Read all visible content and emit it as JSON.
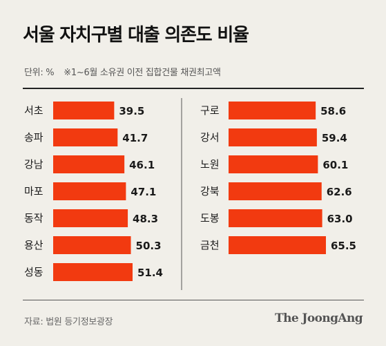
{
  "header": {
    "title": "서울 자치구별 대출 의존도 비율",
    "unit": "단위: %",
    "note": "※1~6월 소유권 이전 집합건물 채권최고액"
  },
  "footer": {
    "source": "자료: 법원 등기정보광장",
    "brand": "The JoongAng"
  },
  "colors": {
    "bar": "#f23a10",
    "background": "#f1efe9"
  },
  "chart_data": {
    "type": "bar",
    "orientation": "horizontal",
    "title": "서울 자치구별 대출 의존도 비율",
    "unit": "%",
    "xlim": [
      0,
      70
    ],
    "groups": [
      {
        "categories": [
          "서초",
          "송파",
          "강남",
          "마포",
          "동작",
          "용산",
          "성동"
        ],
        "values": [
          39.5,
          41.7,
          46.1,
          47.1,
          48.3,
          50.3,
          51.4
        ],
        "value_labels": [
          "39.5",
          "41.7",
          "46.1",
          "47.1",
          "48.3",
          "50.3",
          "51.4"
        ]
      },
      {
        "categories": [
          "구로",
          "강서",
          "노원",
          "강북",
          "도봉",
          "금천"
        ],
        "values": [
          58.6,
          59.4,
          60.1,
          62.6,
          63.0,
          65.5
        ],
        "value_labels": [
          "58.6",
          "59.4",
          "60.1",
          "62.6",
          "63.0",
          "65.5"
        ]
      }
    ]
  }
}
